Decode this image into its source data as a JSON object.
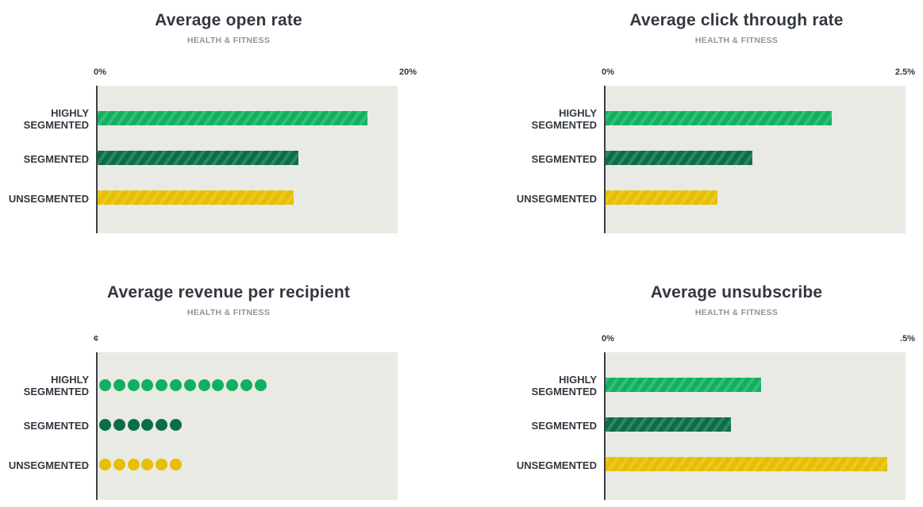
{
  "colors": {
    "highly_segmented": "#10b060",
    "segmented": "#0a6e47",
    "unsegmented": "#e7be00",
    "plot_bg": "#e9eae4",
    "axis": "#3a3f45"
  },
  "chart_data": [
    {
      "type": "bar",
      "orientation": "horizontal",
      "title": "Average open rate",
      "subtitle": "HEALTH & FITNESS",
      "tick_labels": [
        "0%",
        "20%"
      ],
      "xlim": [
        0,
        20
      ],
      "unit": "%",
      "categories": [
        "HIGHLY SEGMENTED",
        "SEGMENTED",
        "UNSEGMENTED"
      ],
      "values": [
        18.0,
        13.4,
        13.1
      ]
    },
    {
      "type": "bar",
      "orientation": "horizontal",
      "title": "Average click through rate",
      "subtitle": "HEALTH & FITNESS",
      "tick_labels": [
        "0%",
        "2.5%"
      ],
      "xlim": [
        0,
        2.5
      ],
      "unit": "%",
      "categories": [
        "HIGHLY SEGMENTED",
        "SEGMENTED",
        "UNSEGMENTED"
      ],
      "values": [
        1.89,
        1.23,
        0.94
      ]
    },
    {
      "type": "dot",
      "orientation": "horizontal",
      "title": "Average revenue per recipient",
      "subtitle": "HEALTH & FITNESS",
      "tick_labels": [
        "¢"
      ],
      "unit": "¢",
      "categories": [
        "HIGHLY SEGMENTED",
        "SEGMENTED",
        "UNSEGMENTED"
      ],
      "values": [
        12,
        6,
        6
      ]
    },
    {
      "type": "bar",
      "orientation": "horizontal",
      "title": "Average unsubscribe",
      "subtitle": "HEALTH & FITNESS",
      "tick_labels": [
        "0%",
        ".5%"
      ],
      "xlim": [
        0,
        0.5
      ],
      "unit": "%",
      "categories": [
        "HIGHLY SEGMENTED",
        "SEGMENTED",
        "UNSEGMENTED"
      ],
      "values": [
        0.26,
        0.21,
        0.47
      ]
    }
  ]
}
